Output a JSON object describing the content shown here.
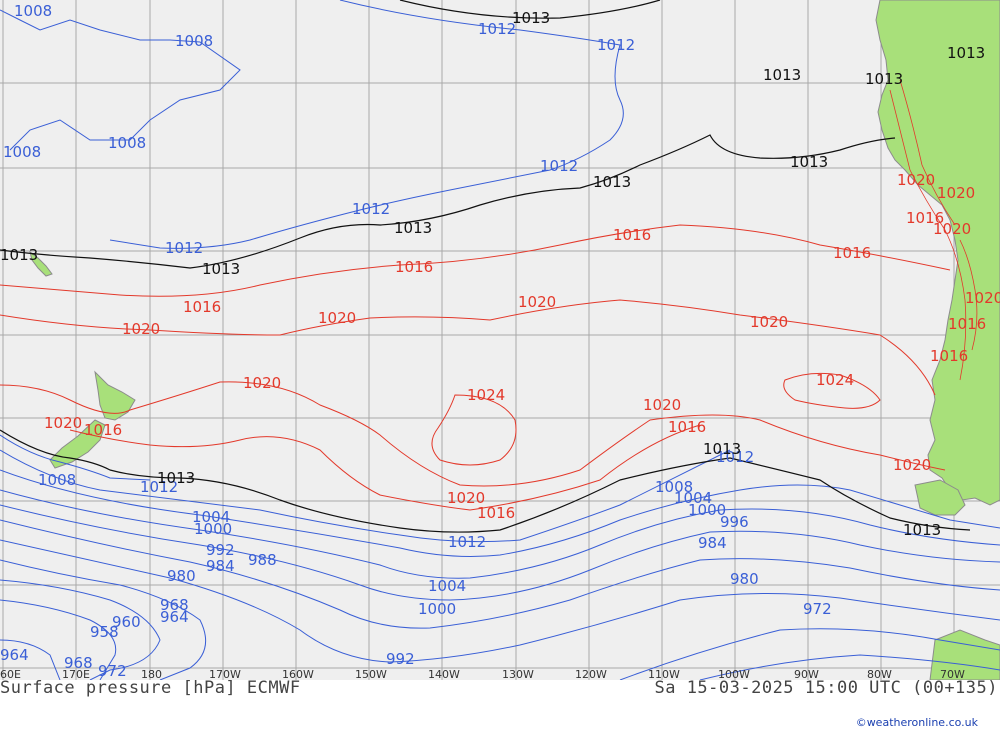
{
  "title": {
    "left": "Surface pressure [hPa] ECMWF",
    "right": "Sa 15-03-2025 15:00 UTC (00+135)"
  },
  "credit": "©weatheronline.co.uk",
  "longitude_labels": [
    "60E",
    "170E",
    "180",
    "170W",
    "160W",
    "150W",
    "140W",
    "130W",
    "120W",
    "110W",
    "100W",
    "90W",
    "80W",
    "70W"
  ],
  "contour_labels": {
    "blue": [
      "1008",
      "1008",
      "1008",
      "1008",
      "1012",
      "1012",
      "1012",
      "1012",
      "1012",
      "1012",
      "1008",
      "1004",
      "1000",
      "992",
      "984",
      "988",
      "980",
      "968",
      "960",
      "964",
      "958",
      "964",
      "968",
      "972",
      "1012",
      "1004",
      "1000",
      "992",
      "1008",
      "1004",
      "1000",
      "996",
      "984",
      "980",
      "972",
      "1012"
    ],
    "black": [
      "1013",
      "1013",
      "1013",
      "1013",
      "1013",
      "1013",
      "1013",
      "1013",
      "1013",
      "1013",
      "1013",
      "1013"
    ],
    "red": [
      "1016",
      "1016",
      "1016",
      "1016",
      "1020",
      "1020",
      "1020",
      "1020",
      "1020",
      "1024",
      "1020",
      "1024",
      "1020",
      "1016",
      "1020",
      "1016",
      "1020",
      "1016",
      "1020",
      "1016",
      "1020",
      "1016",
      "1020",
      "1016",
      "1020"
    ]
  },
  "colors": {
    "map_background": "#efefef",
    "land": "#a8e07a",
    "grid": "#a9a9a9",
    "isobar_low": "#3a5fd6",
    "isobar_high": "#e3392b",
    "isobar_1013": "#111111",
    "coastline": "#8c8c8c"
  }
}
